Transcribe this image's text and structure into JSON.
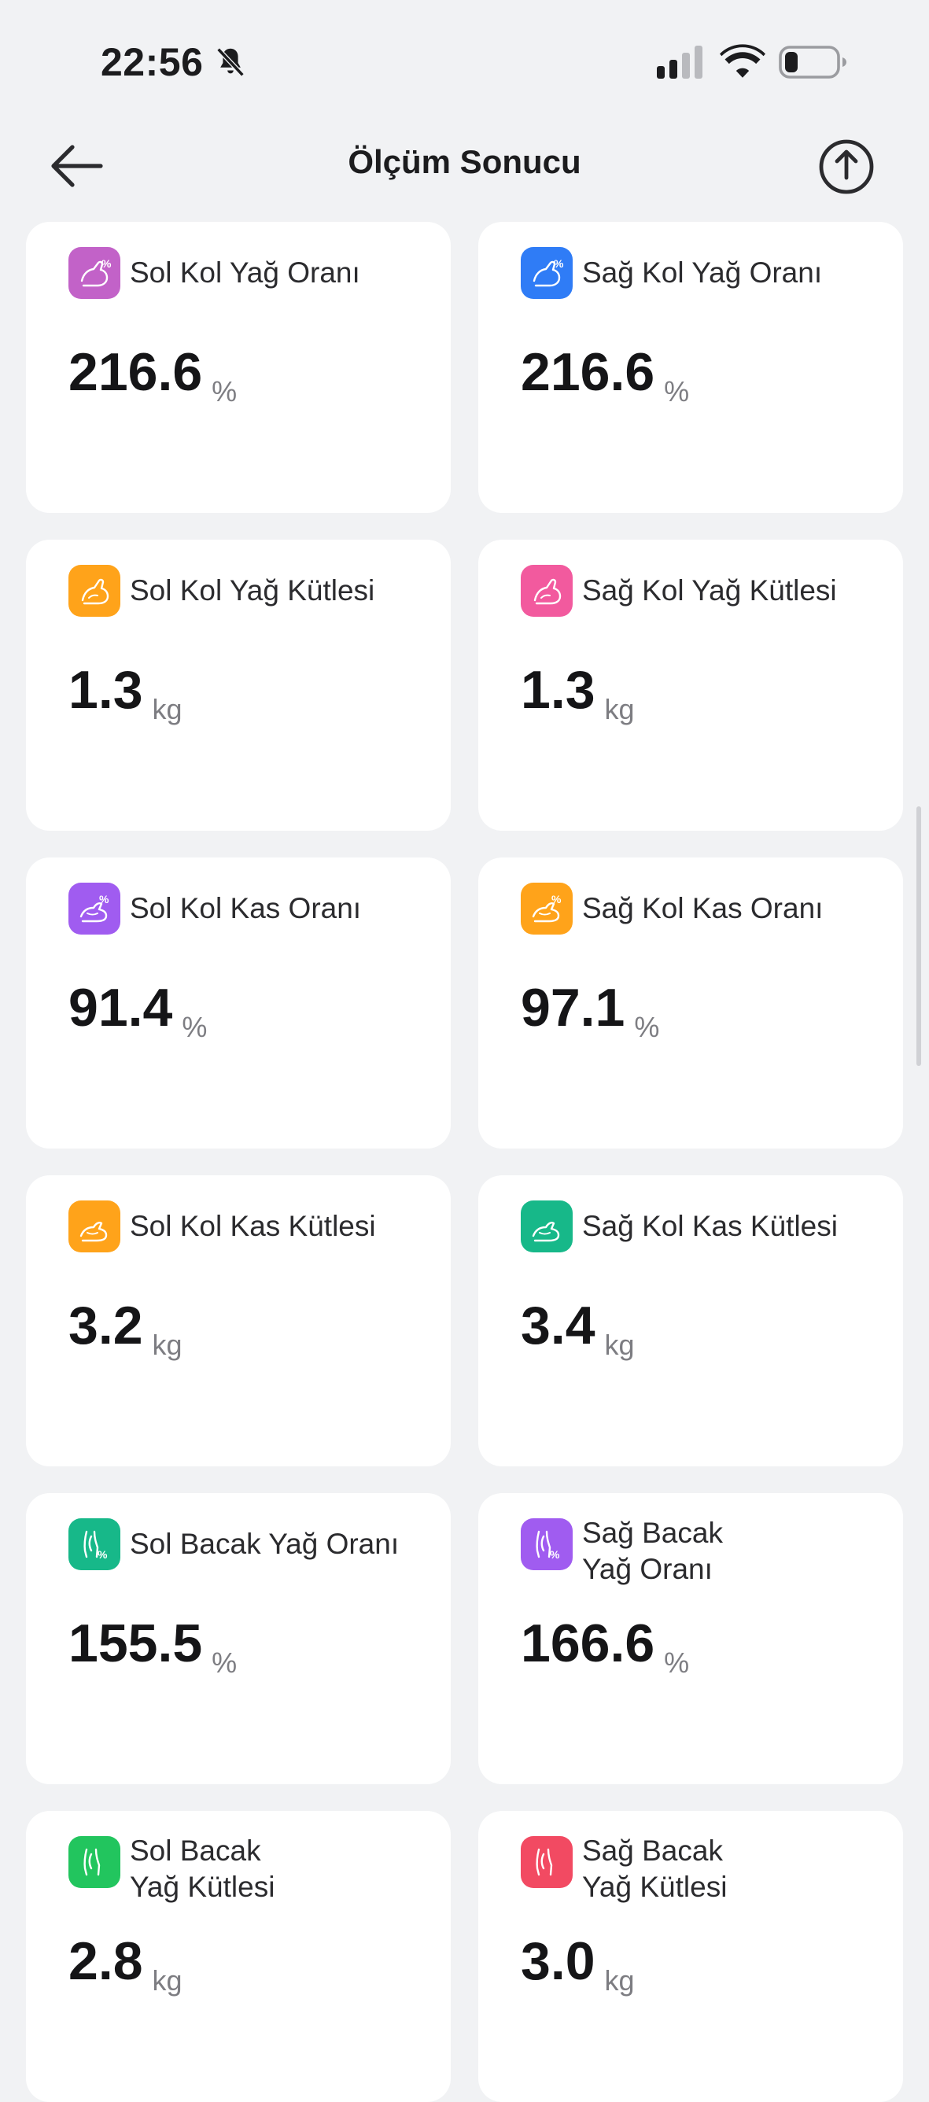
{
  "status_bar": {
    "time": "22:56"
  },
  "nav": {
    "title": "Ölçüm Sonucu"
  },
  "cards": [
    {
      "label": "Sol Kol Yağ Oranı",
      "value": "216.6",
      "unit": "%",
      "color": "#c262c8",
      "icon": "arm-percent-icon"
    },
    {
      "label": "Sağ Kol Yağ Oranı",
      "value": "216.6",
      "unit": "%",
      "color": "#2f7cf6",
      "icon": "arm-percent-icon"
    },
    {
      "label": "Sol Kol Yağ Kütlesi",
      "value": "1.3",
      "unit": "kg",
      "color": "#ffa31a",
      "icon": "arm-icon"
    },
    {
      "label": "Sağ Kol Yağ Kütlesi",
      "value": "1.3",
      "unit": "kg",
      "color": "#f25a9e",
      "icon": "arm-icon"
    },
    {
      "label": "Sol Kol Kas Oranı",
      "value": "91.4",
      "unit": "%",
      "color": "#a05cf0",
      "icon": "arm-muscle-percent-icon"
    },
    {
      "label": "Sağ Kol Kas Oranı",
      "value": "97.1",
      "unit": "%",
      "color": "#ffa31a",
      "icon": "arm-muscle-percent-icon"
    },
    {
      "label": "Sol Kol Kas Kütlesi",
      "value": "3.2",
      "unit": "kg",
      "color": "#ffa31a",
      "icon": "arm-muscle-icon"
    },
    {
      "label": "Sağ Kol Kas Kütlesi",
      "value": "3.4",
      "unit": "kg",
      "color": "#17b889",
      "icon": "arm-muscle-icon"
    },
    {
      "label": "Sol Bacak Yağ Oranı",
      "value": "155.5",
      "unit": "%",
      "color": "#17b889",
      "icon": "leg-percent-icon"
    },
    {
      "label": "Sağ Bacak Yağ Oranı",
      "label_lines": [
        "Sağ Bacak",
        "Yağ Oranı"
      ],
      "value": "166.6",
      "unit": "%",
      "color": "#a05cf0",
      "icon": "leg-percent-icon"
    },
    {
      "label": "Sol Bacak Yağ Kütlesi",
      "label_lines": [
        "Sol Bacak",
        "Yağ Kütlesi"
      ],
      "value": "2.8",
      "unit": "kg",
      "color": "#22c55e",
      "icon": "leg-icon"
    },
    {
      "label": "Sağ Bacak Yağ Kütlesi",
      "label_lines": [
        "Sağ Bacak",
        "Yağ Kütlesi"
      ],
      "value": "3.0",
      "unit": "kg",
      "color": "#f24a62",
      "icon": "leg-icon"
    }
  ]
}
